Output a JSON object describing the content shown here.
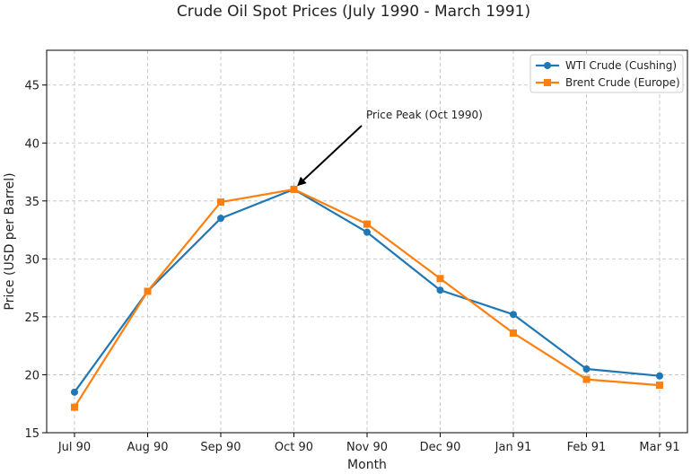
{
  "chart_data": {
    "type": "line",
    "title": "Crude Oil Spot Prices (July 1990 - March 1991)",
    "xlabel": "Month",
    "ylabel": "Price (USD per Barrel)",
    "categories": [
      "Jul 90",
      "Aug 90",
      "Sep 90",
      "Oct 90",
      "Nov 90",
      "Dec 90",
      "Jan 91",
      "Feb 91",
      "Mar 91"
    ],
    "ylim": [
      15,
      48
    ],
    "yticks": [
      15,
      20,
      25,
      30,
      35,
      40,
      45
    ],
    "grid": true,
    "legend_position": "top-right",
    "series": [
      {
        "name": "WTI Crude (Cushing)",
        "color": "#1f77b4",
        "marker": "circle",
        "values": [
          18.5,
          27.2,
          33.5,
          36.0,
          32.3,
          27.3,
          25.2,
          20.5,
          19.9
        ]
      },
      {
        "name": "Brent Crude (Europe)",
        "color": "#ff7f0e",
        "marker": "square",
        "values": [
          17.2,
          27.2,
          34.9,
          36.0,
          33.0,
          28.3,
          23.6,
          19.6,
          19.1
        ]
      }
    ],
    "annotations": [
      {
        "text": "Price Peak (Oct 1990)",
        "target_category": "Oct 90",
        "target_value": 36.0
      }
    ]
  }
}
